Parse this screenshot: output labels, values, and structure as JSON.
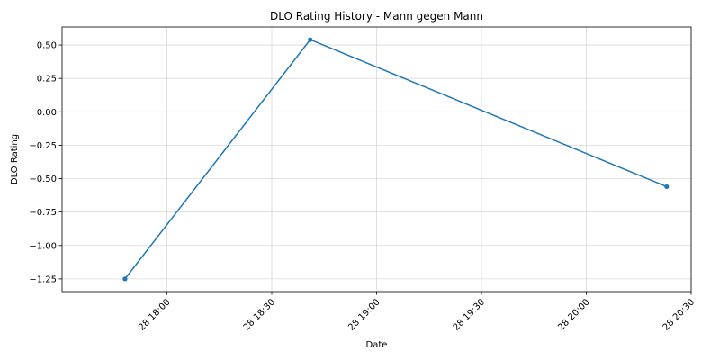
{
  "chart_data": {
    "type": "line",
    "title": "DLO Rating History - Mann gegen Mann",
    "xlabel": "Date",
    "ylabel": "DLO Rating",
    "x": [
      "28 17:48",
      "28 18:41",
      "28 20:23"
    ],
    "x_minutes": [
      1068,
      1121,
      1223
    ],
    "xlim_minutes": [
      1050,
      1230
    ],
    "xticks": [
      {
        "label": "28 18:00",
        "minutes": 1080
      },
      {
        "label": "28 18:30",
        "minutes": 1110
      },
      {
        "label": "28 19:00",
        "minutes": 1140
      },
      {
        "label": "28 19:30",
        "minutes": 1170
      },
      {
        "label": "28 20:00",
        "minutes": 1200
      },
      {
        "label": "28 20:30",
        "minutes": 1230
      }
    ],
    "series": [
      {
        "name": "",
        "values": [
          -1.25,
          0.54,
          -0.56
        ],
        "color": "#1f77b4"
      }
    ],
    "ylim": [
      -1.345,
      0.635
    ],
    "yticks": [
      {
        "label": "0.50",
        "value": 0.5
      },
      {
        "label": "0.25",
        "value": 0.25
      },
      {
        "label": "0.00",
        "value": 0.0
      },
      {
        "label": "−0.25",
        "value": -0.25
      },
      {
        "label": "−0.50",
        "value": -0.5
      },
      {
        "label": "−0.75",
        "value": -0.75
      },
      {
        "label": "−1.00",
        "value": -1.0
      },
      {
        "label": "−1.25",
        "value": -1.25
      }
    ],
    "grid": true,
    "legend": "none"
  }
}
